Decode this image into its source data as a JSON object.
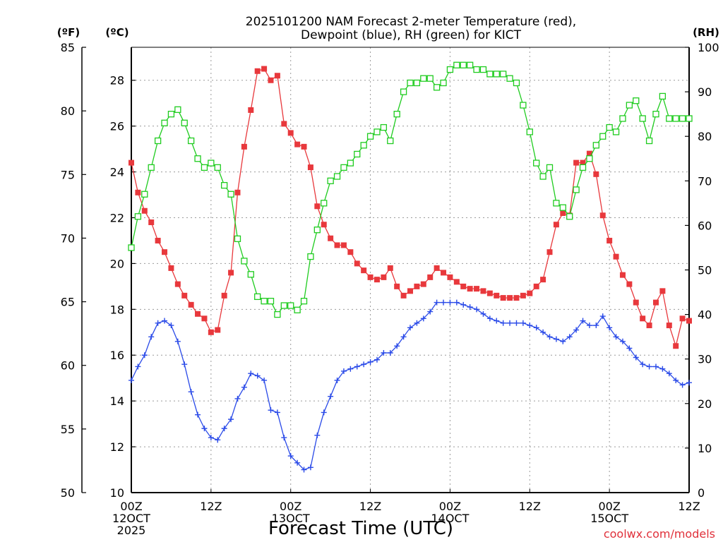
{
  "chart_data": {
    "type": "line",
    "title_line1": "2025101200 NAM Forecast 2-meter Temperature (red),",
    "title_line2": "Dewpoint (blue), RH (green) for KICT",
    "xlabel": "Forecast Time (UTC)",
    "credit": "coolwx.com/models",
    "axes": {
      "left_f": {
        "unit": "(ºF)",
        "range": [
          50,
          85
        ],
        "ticks": [
          50,
          55,
          60,
          65,
          70,
          75,
          80,
          85
        ]
      },
      "left_c": {
        "unit": "(ºC)",
        "range": [
          10,
          29.44
        ],
        "ticks": [
          10,
          12,
          14,
          16,
          18,
          20,
          22,
          24,
          26,
          28
        ]
      },
      "right_rh": {
        "unit": "(RH)",
        "range": [
          0,
          100
        ],
        "ticks": [
          0,
          10,
          20,
          30,
          40,
          50,
          60,
          70,
          80,
          90,
          100
        ]
      }
    },
    "x_range_hours": [
      0,
      84
    ],
    "x_ticks": [
      {
        "h": 0,
        "lines": [
          "00Z",
          "12OCT",
          "2025"
        ]
      },
      {
        "h": 12,
        "lines": [
          "12Z"
        ]
      },
      {
        "h": 24,
        "lines": [
          "00Z",
          "13OCT"
        ]
      },
      {
        "h": 36,
        "lines": [
          "12Z"
        ]
      },
      {
        "h": 48,
        "lines": [
          "00Z",
          "14OCT"
        ]
      },
      {
        "h": 60,
        "lines": [
          "12Z"
        ]
      },
      {
        "h": 72,
        "lines": [
          "00Z",
          "15OCT"
        ]
      },
      {
        "h": 84,
        "lines": [
          "12Z"
        ]
      }
    ],
    "series": [
      {
        "name": "Temperature",
        "color": "#e8383c",
        "axis": "left_c",
        "marker": "filled-square",
        "x": [
          0,
          1,
          2,
          3,
          4,
          5,
          6,
          7,
          8,
          9,
          10,
          11,
          12,
          13,
          14,
          15,
          16,
          17,
          18,
          19,
          20,
          21,
          22,
          23,
          24,
          25,
          26,
          27,
          28,
          29,
          30,
          31,
          32,
          33,
          34,
          35,
          36,
          37,
          38,
          39,
          40,
          41,
          42,
          43,
          44,
          45,
          46,
          47,
          48,
          49,
          50,
          51,
          52,
          53,
          54,
          55,
          56,
          57,
          58,
          59,
          60,
          61,
          62,
          63,
          64,
          65,
          66,
          67,
          68,
          69,
          70,
          71,
          72,
          73,
          74,
          75,
          76,
          77,
          78,
          79,
          80,
          81,
          82,
          83,
          84
        ],
        "y": [
          24.4,
          23.1,
          22.3,
          21.8,
          21.0,
          20.5,
          19.8,
          19.1,
          18.6,
          18.2,
          17.8,
          17.6,
          17.0,
          17.1,
          18.6,
          19.6,
          23.1,
          25.1,
          26.7,
          28.4,
          28.5,
          28.0,
          28.2,
          26.1,
          25.7,
          25.2,
          25.1,
          24.2,
          22.5,
          21.7,
          21.1,
          20.8,
          20.8,
          20.5,
          20.0,
          19.7,
          19.4,
          19.3,
          19.4,
          19.8,
          19.0,
          18.6,
          18.8,
          19.0,
          19.1,
          19.4,
          19.8,
          19.6,
          19.4,
          19.2,
          19.0,
          18.9,
          18.9,
          18.8,
          18.7,
          18.6,
          18.5,
          18.5,
          18.5,
          18.6,
          18.7,
          19.0,
          19.3,
          20.5,
          21.7,
          22.2,
          22.1,
          24.4,
          24.4,
          24.8,
          23.9,
          22.1,
          21.0,
          20.3,
          19.5,
          19.1,
          18.3,
          17.6,
          17.3,
          18.3,
          18.8,
          17.3,
          16.4,
          17.6,
          17.5
        ]
      },
      {
        "name": "Dewpoint",
        "color": "#2a4ae8",
        "axis": "left_c",
        "marker": "plus",
        "x": [
          0,
          1,
          2,
          3,
          4,
          5,
          6,
          7,
          8,
          9,
          10,
          11,
          12,
          13,
          14,
          15,
          16,
          17,
          18,
          19,
          20,
          21,
          22,
          23,
          24,
          25,
          26,
          27,
          28,
          29,
          30,
          31,
          32,
          33,
          34,
          35,
          36,
          37,
          38,
          39,
          40,
          41,
          42,
          43,
          44,
          45,
          46,
          47,
          48,
          49,
          50,
          51,
          52,
          53,
          54,
          55,
          56,
          57,
          58,
          59,
          60,
          61,
          62,
          63,
          64,
          65,
          66,
          67,
          68,
          69,
          70,
          71,
          72,
          73,
          74,
          75,
          76,
          77,
          78,
          79,
          80,
          81,
          82,
          83,
          84
        ],
        "y": [
          14.9,
          15.5,
          16.0,
          16.8,
          17.4,
          17.5,
          17.3,
          16.6,
          15.6,
          14.4,
          13.4,
          12.8,
          12.4,
          12.3,
          12.8,
          13.2,
          14.1,
          14.6,
          15.2,
          15.1,
          14.9,
          13.6,
          13.5,
          12.4,
          11.6,
          11.3,
          11.0,
          11.1,
          12.5,
          13.5,
          14.2,
          14.9,
          15.3,
          15.4,
          15.5,
          15.6,
          15.7,
          15.8,
          16.1,
          16.1,
          16.4,
          16.8,
          17.2,
          17.4,
          17.6,
          17.9,
          18.3,
          18.3,
          18.3,
          18.3,
          18.2,
          18.1,
          18.0,
          17.8,
          17.6,
          17.5,
          17.4,
          17.4,
          17.4,
          17.4,
          17.3,
          17.2,
          17.0,
          16.8,
          16.7,
          16.6,
          16.8,
          17.1,
          17.5,
          17.3,
          17.3,
          17.7,
          17.2,
          16.8,
          16.6,
          16.3,
          15.9,
          15.6,
          15.5,
          15.5,
          15.4,
          15.2,
          14.9,
          14.7,
          14.8
        ]
      },
      {
        "name": "RH",
        "color": "#1fcc1f",
        "axis": "right_rh",
        "marker": "open-square",
        "x": [
          0,
          1,
          2,
          3,
          4,
          5,
          6,
          7,
          8,
          9,
          10,
          11,
          12,
          13,
          14,
          15,
          16,
          17,
          18,
          19,
          20,
          21,
          22,
          23,
          24,
          25,
          26,
          27,
          28,
          29,
          30,
          31,
          32,
          33,
          34,
          35,
          36,
          37,
          38,
          39,
          40,
          41,
          42,
          43,
          44,
          45,
          46,
          47,
          48,
          49,
          50,
          51,
          52,
          53,
          54,
          55,
          56,
          57,
          58,
          59,
          60,
          61,
          62,
          63,
          64,
          65,
          66,
          67,
          68,
          69,
          70,
          71,
          72,
          73,
          74,
          75,
          76,
          77,
          78,
          79,
          80,
          81,
          82,
          83,
          84
        ],
        "y": [
          55,
          62,
          67,
          73,
          79,
          83,
          85,
          86,
          83,
          79,
          75,
          73,
          74,
          73,
          69,
          67,
          57,
          52,
          49,
          44,
          43,
          43,
          40,
          42,
          42,
          41,
          43,
          53,
          59,
          65,
          70,
          71,
          73,
          74,
          76,
          78,
          80,
          81,
          82,
          79,
          85,
          90,
          92,
          92,
          93,
          93,
          91,
          92,
          95,
          96,
          96,
          96,
          95,
          95,
          94,
          94,
          94,
          93,
          92,
          87,
          81,
          74,
          71,
          73,
          65,
          64,
          62,
          68,
          73,
          75,
          78,
          80,
          82,
          81,
          84,
          87,
          88,
          84,
          79,
          85,
          89,
          84,
          84,
          84,
          84
        ]
      }
    ]
  }
}
